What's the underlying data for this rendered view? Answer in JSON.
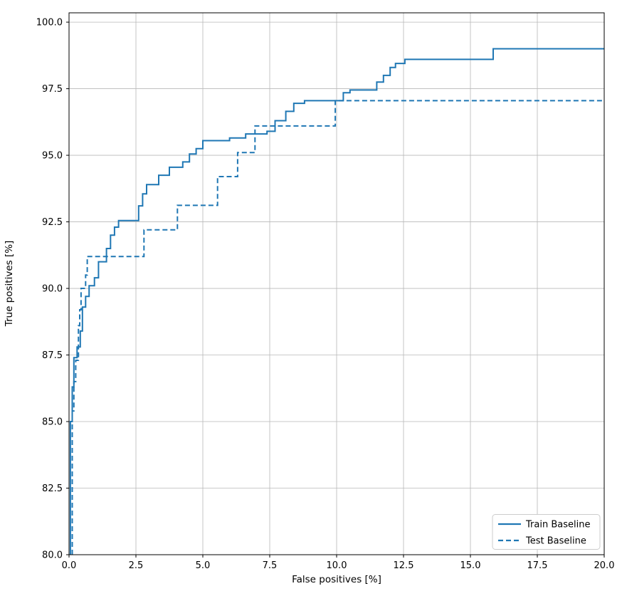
{
  "figure": {
    "background": "#ffffff"
  },
  "chart_data": {
    "type": "line",
    "title": "",
    "xlabel": "False positives [%]",
    "ylabel": "True positives [%]",
    "xlim": [
      0,
      20
    ],
    "ylim": [
      80,
      100.35
    ],
    "xticks": [
      0.0,
      2.5,
      5.0,
      7.5,
      10.0,
      12.5,
      15.0,
      17.5,
      20.0
    ],
    "xtick_labels": [
      "0.0",
      "2.5",
      "5.0",
      "7.5",
      "10.0",
      "12.5",
      "15.0",
      "17.5",
      "20.0"
    ],
    "yticks": [
      80.0,
      82.5,
      85.0,
      87.5,
      90.0,
      92.5,
      95.0,
      97.5,
      100.0
    ],
    "ytick_labels": [
      "80.0",
      "82.5",
      "85.0",
      "87.5",
      "90.0",
      "92.5",
      "95.0",
      "97.5",
      "100.0"
    ],
    "grid": true,
    "grid_color": "#b8b8b8",
    "spine_color": "#000000",
    "legend_position": "lower right",
    "series": [
      {
        "name": "Train Baseline",
        "style": "solid",
        "color": "#1f77b4",
        "points": [
          [
            0.05,
            80
          ],
          [
            0.05,
            85.0
          ],
          [
            0.12,
            85.0
          ],
          [
            0.12,
            86.3
          ],
          [
            0.18,
            86.3
          ],
          [
            0.18,
            87.4
          ],
          [
            0.3,
            87.4
          ],
          [
            0.3,
            87.8
          ],
          [
            0.42,
            87.8
          ],
          [
            0.42,
            88.4
          ],
          [
            0.5,
            88.4
          ],
          [
            0.5,
            89.3
          ],
          [
            0.62,
            89.3
          ],
          [
            0.62,
            89.7
          ],
          [
            0.75,
            89.7
          ],
          [
            0.75,
            90.1
          ],
          [
            0.95,
            90.1
          ],
          [
            0.95,
            90.4
          ],
          [
            1.1,
            90.4
          ],
          [
            1.1,
            91.0
          ],
          [
            1.4,
            91.0
          ],
          [
            1.4,
            91.5
          ],
          [
            1.55,
            91.5
          ],
          [
            1.55,
            92.0
          ],
          [
            1.7,
            92.0
          ],
          [
            1.7,
            92.3
          ],
          [
            1.85,
            92.3
          ],
          [
            1.85,
            92.55
          ],
          [
            2.6,
            92.55
          ],
          [
            2.6,
            93.1
          ],
          [
            2.75,
            93.1
          ],
          [
            2.75,
            93.55
          ],
          [
            2.9,
            93.55
          ],
          [
            2.9,
            93.9
          ],
          [
            3.35,
            93.9
          ],
          [
            3.35,
            94.25
          ],
          [
            3.75,
            94.25
          ],
          [
            3.75,
            94.55
          ],
          [
            4.25,
            94.55
          ],
          [
            4.25,
            94.75
          ],
          [
            4.5,
            94.75
          ],
          [
            4.5,
            95.05
          ],
          [
            4.75,
            95.05
          ],
          [
            4.75,
            95.25
          ],
          [
            5.0,
            95.25
          ],
          [
            5.0,
            95.55
          ],
          [
            6.0,
            95.55
          ],
          [
            6.0,
            95.65
          ],
          [
            6.6,
            95.65
          ],
          [
            6.6,
            95.8
          ],
          [
            7.4,
            95.8
          ],
          [
            7.4,
            95.9
          ],
          [
            7.7,
            95.9
          ],
          [
            7.7,
            96.3
          ],
          [
            8.1,
            96.3
          ],
          [
            8.1,
            96.65
          ],
          [
            8.4,
            96.65
          ],
          [
            8.4,
            96.95
          ],
          [
            8.8,
            96.95
          ],
          [
            8.8,
            97.05
          ],
          [
            10.25,
            97.05
          ],
          [
            10.25,
            97.35
          ],
          [
            10.5,
            97.35
          ],
          [
            10.5,
            97.45
          ],
          [
            11.5,
            97.45
          ],
          [
            11.5,
            97.75
          ],
          [
            11.75,
            97.75
          ],
          [
            11.75,
            98.0
          ],
          [
            12.0,
            98.0
          ],
          [
            12.0,
            98.3
          ],
          [
            12.2,
            98.3
          ],
          [
            12.2,
            98.45
          ],
          [
            12.55,
            98.45
          ],
          [
            12.55,
            98.6
          ],
          [
            15.85,
            98.6
          ],
          [
            15.85,
            99.0
          ],
          [
            20,
            99.0
          ]
        ]
      },
      {
        "name": "Test Baseline",
        "style": "dashed",
        "color": "#1f77b4",
        "points": [
          [
            0.12,
            80
          ],
          [
            0.12,
            85.4
          ],
          [
            0.18,
            85.4
          ],
          [
            0.18,
            86.5
          ],
          [
            0.25,
            86.5
          ],
          [
            0.25,
            87.3
          ],
          [
            0.35,
            87.3
          ],
          [
            0.35,
            88.6
          ],
          [
            0.4,
            88.6
          ],
          [
            0.4,
            89.2
          ],
          [
            0.45,
            89.2
          ],
          [
            0.45,
            90.0
          ],
          [
            0.62,
            90.0
          ],
          [
            0.62,
            90.5
          ],
          [
            0.68,
            90.5
          ],
          [
            0.68,
            91.2
          ],
          [
            2.8,
            91.2
          ],
          [
            2.8,
            92.2
          ],
          [
            4.05,
            92.2
          ],
          [
            4.05,
            93.12
          ],
          [
            5.55,
            93.12
          ],
          [
            5.55,
            94.2
          ],
          [
            6.3,
            94.2
          ],
          [
            6.3,
            95.1
          ],
          [
            6.95,
            95.1
          ],
          [
            6.95,
            96.1
          ],
          [
            9.95,
            96.1
          ],
          [
            9.95,
            97.05
          ],
          [
            20,
            97.05
          ]
        ]
      }
    ]
  }
}
